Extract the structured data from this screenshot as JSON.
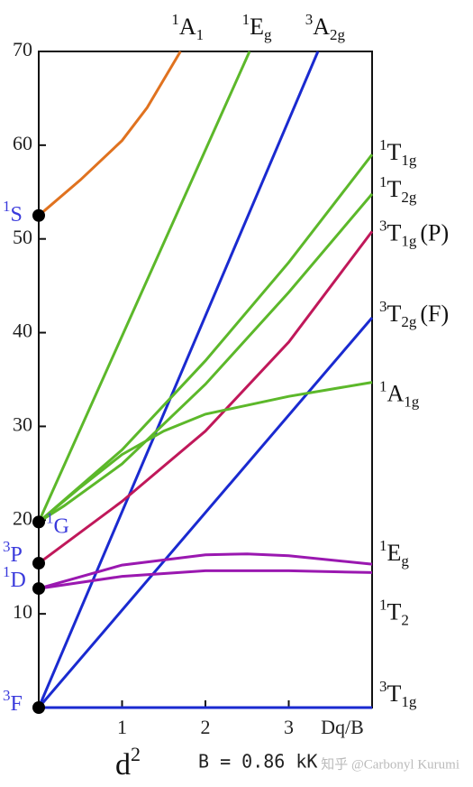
{
  "chart_data": {
    "type": "line",
    "x_label": "Dq/B",
    "config_label": {
      "main": "d",
      "sup": "2"
    },
    "note": "B = 0.86 kK",
    "watermark": "知乎 @Carbonyl Kurumi",
    "xlim": [
      0,
      4
    ],
    "xticks": [
      1,
      2,
      3
    ],
    "ylim": [
      0,
      70
    ],
    "yticks": [
      10,
      20,
      30,
      40,
      50,
      60,
      70
    ],
    "free_ions": [
      {
        "sup": "1",
        "main": "S",
        "value": 52.5
      },
      {
        "sup": "1",
        "main": "G",
        "value": 19.8
      },
      {
        "sup": "3",
        "main": "P",
        "value": 15.4
      },
      {
        "sup": "1",
        "main": "D",
        "value": 12.7
      },
      {
        "sup": "3",
        "main": "F",
        "value": 0
      }
    ],
    "series": [
      {
        "label": {
          "sup": "1",
          "main": "A",
          "sub": "1"
        },
        "color": "#e0721f",
        "x": [
          0,
          0.5,
          1,
          1.3,
          1.7
        ],
        "values": [
          52.5,
          56.3,
          60.5,
          64,
          70
        ]
      },
      {
        "label": {
          "sup": "1",
          "main": "E",
          "sub": "g"
        },
        "color": "#5cb82a",
        "x": [
          0,
          2.53
        ],
        "values": [
          19.8,
          70
        ]
      },
      {
        "label": {
          "sup": "3",
          "main": "A",
          "sub": "2g"
        },
        "color": "#1a2ad0",
        "x": [
          0,
          3.35
        ],
        "values": [
          0,
          70
        ]
      },
      {
        "label": {
          "sup": "1",
          "main": "T",
          "sub": "1g"
        },
        "color": "#5cb82a",
        "x": [
          0,
          1,
          2,
          3,
          4
        ],
        "values": [
          19.8,
          27.5,
          37,
          47.5,
          59
        ]
      },
      {
        "label": {
          "sup": "1",
          "main": "T",
          "sub": "2g"
        },
        "color": "#5cb82a",
        "x": [
          0,
          0.3,
          1,
          2,
          3,
          4
        ],
        "values": [
          19.8,
          21.5,
          26,
          34.5,
          44.3,
          54.8
        ]
      },
      {
        "label": {
          "sup": "3",
          "main": "T",
          "sub": "1g",
          "suffix": "(P)"
        },
        "color": "#c0185a",
        "x": [
          0,
          1,
          2,
          3,
          4
        ],
        "values": [
          15.4,
          22,
          29.5,
          39,
          50.8
        ]
      },
      {
        "label": {
          "sup": "3",
          "main": "T",
          "sub": "2g",
          "suffix": "(F)"
        },
        "color": "#1a2ad0",
        "x": [
          0,
          4
        ],
        "values": [
          0,
          41.6
        ]
      },
      {
        "label": {
          "sup": "1",
          "main": "A",
          "sub": "1g"
        },
        "color": "#5cb82a",
        "x": [
          0,
          0.5,
          1,
          1.5,
          2,
          3,
          4
        ],
        "values": [
          19.8,
          23.5,
          27,
          29.5,
          31.3,
          33.2,
          34.7
        ]
      },
      {
        "label": {
          "sup": "1",
          "main": "E",
          "sub": "g"
        },
        "color": "#9a18b0",
        "x": [
          0,
          1,
          2,
          2.5,
          3,
          4
        ],
        "values": [
          12.7,
          15.2,
          16.3,
          16.4,
          16.2,
          15.3
        ]
      },
      {
        "label": {
          "sup": "1",
          "main": "T",
          "sub": "2"
        },
        "color": "#9a18b0",
        "x": [
          0,
          1,
          2,
          3,
          4
        ],
        "values": [
          12.7,
          14,
          14.6,
          14.6,
          14.4
        ]
      },
      {
        "label": {
          "sup": "3",
          "main": "T",
          "sub": "1g"
        },
        "color": "#1a2ad0",
        "x": [
          0,
          4
        ],
        "values": [
          0,
          0
        ]
      }
    ]
  }
}
